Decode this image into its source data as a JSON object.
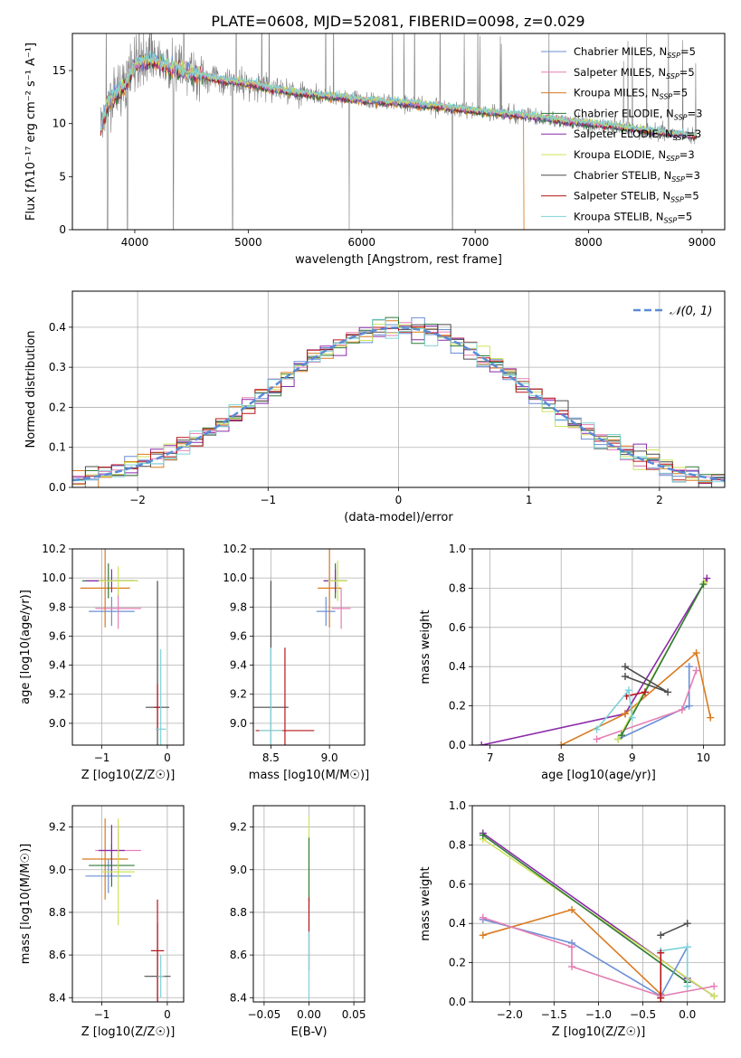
{
  "figure_title": "PLATE=0608, MJD=52081, FIBERID=0098, z=0.029",
  "colors": {
    "chabrier_miles": "#6a8fd6",
    "salpeter_miles": "#e57fb4",
    "kroupa_miles": "#d97a1f",
    "chabrier_elodie": "#2f7a3a",
    "salpeter_elodie": "#8b2aa8",
    "kroupa_elodie": "#cde45a",
    "chabrier_stelib": "#4b4b4b",
    "salpeter_stelib": "#b8141a",
    "kroupa_stelib": "#7dd3d8",
    "data": "#7f7f7f",
    "gauss": "#5b8bd6"
  },
  "chart_data": [
    {
      "id": "spectrum",
      "type": "line",
      "xlabel": "wavelength [Angstrom, rest frame]",
      "ylabel": "Flux [fλ10⁻¹⁷ erg cm⁻² s⁻¹ A⁻¹]",
      "xlim": [
        3450,
        9200
      ],
      "ylim": [
        0,
        18.5
      ],
      "xticks": [
        4000,
        5000,
        6000,
        7000,
        8000,
        9000
      ],
      "yticks": [
        0,
        5,
        10,
        15
      ],
      "legend_position": "top-right",
      "legend": [
        {
          "name_main": "Chabrier MILES, N",
          "name_sub": "SSP",
          "name_tail": "=5",
          "color_key": "chabrier_miles"
        },
        {
          "name_main": "Salpeter MILES, N",
          "name_sub": "SSP",
          "name_tail": "=5",
          "color_key": "salpeter_miles"
        },
        {
          "name_main": "Kroupa MILES, N",
          "name_sub": "SSP",
          "name_tail": "=5",
          "color_key": "kroupa_miles"
        },
        {
          "name_main": "Chabrier ELODIE, N",
          "name_sub": "SSP",
          "name_tail": "=3",
          "color_key": "chabrier_elodie"
        },
        {
          "name_main": "Salpeter ELODIE, N",
          "name_sub": "SSP",
          "name_tail": "=3",
          "color_key": "salpeter_elodie"
        },
        {
          "name_main": "Kroupa ELODIE, N",
          "name_sub": "SSP",
          "name_tail": "=3",
          "color_key": "kroupa_elodie"
        },
        {
          "name_main": "Chabrier STELIB, N",
          "name_sub": "SSP",
          "name_tail": "=3",
          "color_key": "chabrier_stelib"
        },
        {
          "name_main": "Salpeter STELIB, N",
          "name_sub": "SSP",
          "name_tail": "=5",
          "color_key": "salpeter_stelib"
        },
        {
          "name_main": "Kroupa STELIB, N",
          "name_sub": "SSP",
          "name_tail": "=5",
          "color_key": "kroupa_stelib"
        }
      ],
      "continuum_points": [
        [
          3700,
          9.5
        ],
        [
          3760,
          12
        ],
        [
          3900,
          13.5
        ],
        [
          4000,
          15.5
        ],
        [
          4100,
          16
        ],
        [
          4200,
          15.8
        ],
        [
          4400,
          15
        ],
        [
          4600,
          14.5
        ],
        [
          4800,
          14
        ],
        [
          5000,
          13.8
        ],
        [
          5200,
          13.3
        ],
        [
          5500,
          12.8
        ],
        [
          5800,
          12.5
        ],
        [
          6000,
          12.2
        ],
        [
          6300,
          12
        ],
        [
          6600,
          11.7
        ],
        [
          7000,
          11.2
        ],
        [
          7400,
          10.8
        ],
        [
          7800,
          10.2
        ],
        [
          8200,
          9.8
        ],
        [
          8600,
          9.2
        ],
        [
          8950,
          8.8
        ]
      ],
      "models_end_wavelength": 7430
    },
    {
      "id": "residuals",
      "type": "histogram",
      "xlabel": "(data-model)/error",
      "ylabel": "Normed distribution",
      "xlim": [
        -2.5,
        2.5
      ],
      "ylim": [
        0,
        0.49
      ],
      "xticks": [
        -2,
        -1,
        0,
        1,
        2
      ],
      "yticks": [
        0.0,
        0.1,
        0.2,
        0.3,
        0.4
      ],
      "legend_position": "top-right",
      "legend_label": "𝒩(0, 1)",
      "bin_width": 0.1,
      "reference_curve": "N(0,1)"
    },
    {
      "id": "age_vs_Z",
      "type": "scatter",
      "xlabel": "Z [log10(Z/Z☉)]",
      "ylabel": "age  [log10(age/yr)]",
      "xlim": [
        -1.45,
        0.25
      ],
      "ylim": [
        8.85,
        10.2
      ],
      "xticks": [
        -1,
        0
      ],
      "yticks": [
        9.0,
        9.2,
        9.4,
        9.6,
        9.8,
        10.0,
        10.2
      ],
      "points": [
        {
          "k": "chabrier_miles",
          "x": -0.85,
          "y": 9.77,
          "xe": 0.35,
          "ye": 0.1
        },
        {
          "k": "salpeter_miles",
          "x": -0.75,
          "y": 9.79,
          "xe": 0.35,
          "ye": 0.14
        },
        {
          "k": "kroupa_miles",
          "x": -0.95,
          "y": 9.93,
          "xe": 0.38,
          "ye": 0.27
        },
        {
          "k": "chabrier_elodie",
          "x": -0.9,
          "y": 9.98,
          "xe": 0.4,
          "ye": 0.12
        },
        {
          "k": "salpeter_elodie",
          "x": -0.85,
          "y": 9.98,
          "xe": 0.4,
          "ye": 0.08
        },
        {
          "k": "kroupa_elodie",
          "x": -0.75,
          "y": 9.98,
          "xe": 0.3,
          "ye": 0.1
        },
        {
          "k": "chabrier_stelib",
          "x": -0.15,
          "y": 9.11,
          "xe": 0.18,
          "ye": 0.87
        },
        {
          "k": "salpeter_stelib",
          "x": -0.15,
          "y": 9.11,
          "xe": 0.05,
          "ye": 0.16
        },
        {
          "k": "kroupa_stelib",
          "x": -0.1,
          "y": 8.96,
          "xe": 0.08,
          "ye": 0.55
        }
      ]
    },
    {
      "id": "age_vs_mass",
      "type": "scatter",
      "xlabel": "mass [log10(M/M☉)]",
      "ylabel": "",
      "xlim": [
        8.35,
        9.3
      ],
      "ylim": [
        8.85,
        10.2
      ],
      "xticks": [
        8.5,
        9.0
      ],
      "yticks": [
        9.0,
        9.2,
        9.4,
        9.6,
        9.8,
        10.0,
        10.2
      ],
      "points": [
        {
          "k": "chabrier_miles",
          "x": 8.97,
          "y": 9.77,
          "xe": 0.08,
          "ye": 0.1
        },
        {
          "k": "salpeter_miles",
          "x": 9.1,
          "y": 9.79,
          "xe": 0.08,
          "ye": 0.14
        },
        {
          "k": "kroupa_miles",
          "x": 9.0,
          "y": 9.93,
          "xe": 0.1,
          "ye": 0.27
        },
        {
          "k": "chabrier_elodie",
          "x": 9.05,
          "y": 9.98,
          "xe": 0.1,
          "ye": 0.12
        },
        {
          "k": "salpeter_elodie",
          "x": 9.05,
          "y": 9.98,
          "xe": 0.1,
          "ye": 0.08
        },
        {
          "k": "kroupa_elodie",
          "x": 9.07,
          "y": 9.98,
          "xe": 0.08,
          "ye": 0.14
        },
        {
          "k": "chabrier_stelib",
          "x": 8.5,
          "y": 9.11,
          "xe": 0.15,
          "ye": 0.87
        },
        {
          "k": "salpeter_stelib",
          "x": 8.62,
          "y": 8.95,
          "xe": 0.25,
          "ye": 0.57
        },
        {
          "k": "kroupa_stelib",
          "x": 8.5,
          "y": 8.95,
          "xe": 0.1,
          "ye": 0.57
        }
      ]
    },
    {
      "id": "massweight_vs_age",
      "type": "line",
      "xlabel": "age  [log10(age/yr)]",
      "ylabel": "mass weight",
      "xlim": [
        6.75,
        10.3
      ],
      "ylim": [
        0,
        1.0
      ],
      "xticks": [
        7,
        8,
        9,
        10
      ],
      "yticks": [
        0.0,
        0.2,
        0.4,
        0.6,
        0.8,
        1.0
      ],
      "series": [
        {
          "k": "salpeter_elodie",
          "x": [
            6.88,
            8.9,
            10.05
          ],
          "y": [
            0.0,
            0.16,
            0.85
          ]
        },
        {
          "k": "kroupa_miles",
          "x": [
            8.0,
            8.9,
            9.9,
            10.1
          ],
          "y": [
            0.0,
            0.16,
            0.47,
            0.14
          ]
        },
        {
          "k": "chabrier_miles",
          "x": [
            8.8,
            9.8,
            9.8
          ],
          "y": [
            0.03,
            0.2,
            0.4
          ]
        },
        {
          "k": "salpeter_miles",
          "x": [
            8.5,
            9.7,
            9.9
          ],
          "y": [
            0.03,
            0.18,
            0.38
          ]
        },
        {
          "k": "kroupa_elodie",
          "x": [
            8.8,
            10.02
          ],
          "y": [
            0.03,
            0.83
          ]
        },
        {
          "k": "chabrier_elodie",
          "x": [
            8.85,
            10.0
          ],
          "y": [
            0.05,
            0.82
          ]
        },
        {
          "k": "chabrier_stelib",
          "x": [
            8.9,
            9.5,
            8.9
          ],
          "y": [
            0.4,
            0.27,
            0.35
          ]
        },
        {
          "k": "salpeter_stelib",
          "x": [
            8.92,
            9.18
          ],
          "y": [
            0.25,
            0.27
          ]
        },
        {
          "k": "kroupa_stelib",
          "x": [
            8.5,
            8.95,
            9.0
          ],
          "y": [
            0.08,
            0.28,
            0.14
          ]
        }
      ]
    },
    {
      "id": "mass_vs_Z",
      "type": "scatter",
      "xlabel": "Z [log10(Z/Z☉)]",
      "ylabel": "mass [log10(M/M☉)]",
      "xlim": [
        -1.45,
        0.25
      ],
      "ylim": [
        8.38,
        9.3
      ],
      "xticks": [
        -1,
        0
      ],
      "yticks": [
        8.4,
        8.6,
        8.8,
        9.0,
        9.2
      ],
      "points": [
        {
          "k": "chabrier_miles",
          "x": -0.9,
          "y": 8.97,
          "xe": 0.35,
          "ye": 0.08
        },
        {
          "k": "salpeter_miles",
          "x": -0.75,
          "y": 9.09,
          "xe": 0.35,
          "ye": 0.12
        },
        {
          "k": "kroupa_miles",
          "x": -0.95,
          "y": 9.05,
          "xe": 0.35,
          "ye": 0.19
        },
        {
          "k": "chabrier_elodie",
          "x": -0.85,
          "y": 9.02,
          "xe": 0.35,
          "ye": 0.1
        },
        {
          "k": "salpeter_elodie",
          "x": -0.85,
          "y": 9.09,
          "xe": 0.2,
          "ye": 0.12
        },
        {
          "k": "kroupa_elodie",
          "x": -0.75,
          "y": 8.99,
          "xe": 0.25,
          "ye": 0.25
        },
        {
          "k": "chabrier_stelib",
          "x": -0.15,
          "y": 8.5,
          "xe": 0.2,
          "ye": 0.25
        },
        {
          "k": "salpeter_stelib",
          "x": -0.15,
          "y": 8.62,
          "xe": 0.1,
          "ye": 0.24
        },
        {
          "k": "kroupa_stelib",
          "x": -0.1,
          "y": 8.5,
          "xe": 0.05,
          "ye": 0.1
        }
      ]
    },
    {
      "id": "mass_vs_ebv",
      "type": "scatter",
      "xlabel": "E(B-V)",
      "ylabel": "",
      "xlim": [
        -0.062,
        0.062
      ],
      "ylim": [
        8.38,
        9.3
      ],
      "xticks": [
        -0.05,
        0.0,
        0.05
      ],
      "yticks": [
        8.4,
        8.6,
        8.8,
        9.0,
        9.2
      ],
      "points": [
        {
          "k": "kroupa_elodie",
          "x": 0,
          "y": 9.0,
          "xe": 0,
          "ye": 0.25
        },
        {
          "k": "chabrier_elodie",
          "x": 0,
          "y": 9.0,
          "xe": 0,
          "ye": 0.15
        },
        {
          "k": "salpeter_stelib",
          "x": 0,
          "y": 8.7,
          "xe": 0,
          "ye": 0.17
        },
        {
          "k": "kroupa_stelib",
          "x": 0,
          "y": 8.55,
          "xe": 0,
          "ye": 0.16
        }
      ]
    },
    {
      "id": "massweight_vs_Z",
      "type": "line",
      "xlabel": "Z [log10(Z/Z☉)]",
      "ylabel": "mass weight",
      "xlim": [
        -2.42,
        0.42
      ],
      "ylim": [
        0,
        1.0
      ],
      "xticks": [
        -2.0,
        -1.5,
        -1.0,
        -0.5,
        0.0
      ],
      "yticks": [
        0.0,
        0.2,
        0.4,
        0.6,
        0.8,
        1.0
      ],
      "series": [
        {
          "k": "salpeter_elodie",
          "x": [
            -2.3,
            0.0,
            0.3
          ],
          "y": [
            0.86,
            0.12,
            0.03
          ]
        },
        {
          "k": "kroupa_elodie",
          "x": [
            -2.3,
            0.3
          ],
          "y": [
            0.83,
            0.03
          ]
        },
        {
          "k": "chabrier_elodie",
          "x": [
            -2.3,
            0.0
          ],
          "y": [
            0.85,
            0.1
          ]
        },
        {
          "k": "kroupa_miles",
          "x": [
            -2.3,
            -1.3,
            -0.3,
            -0.3
          ],
          "y": [
            0.34,
            0.47,
            0.04,
            0.0
          ]
        },
        {
          "k": "chabrier_miles",
          "x": [
            -2.3,
            -1.3,
            -0.3,
            0.0
          ],
          "y": [
            0.42,
            0.3,
            0.03,
            0.28
          ]
        },
        {
          "k": "salpeter_miles",
          "x": [
            -2.3,
            -1.3,
            -1.3,
            -0.3,
            0.3
          ],
          "y": [
            0.43,
            0.28,
            0.18,
            0.03,
            0.08
          ]
        },
        {
          "k": "chabrier_stelib",
          "x": [
            -0.3,
            0.0
          ],
          "y": [
            0.34,
            0.4
          ]
        },
        {
          "k": "kroupa_stelib",
          "x": [
            -0.3,
            0.0,
            0.0
          ],
          "y": [
            0.26,
            0.28,
            0.08
          ]
        },
        {
          "k": "salpeter_stelib",
          "x": [
            -0.3,
            -0.3
          ],
          "y": [
            0.02,
            0.25
          ]
        }
      ]
    }
  ]
}
